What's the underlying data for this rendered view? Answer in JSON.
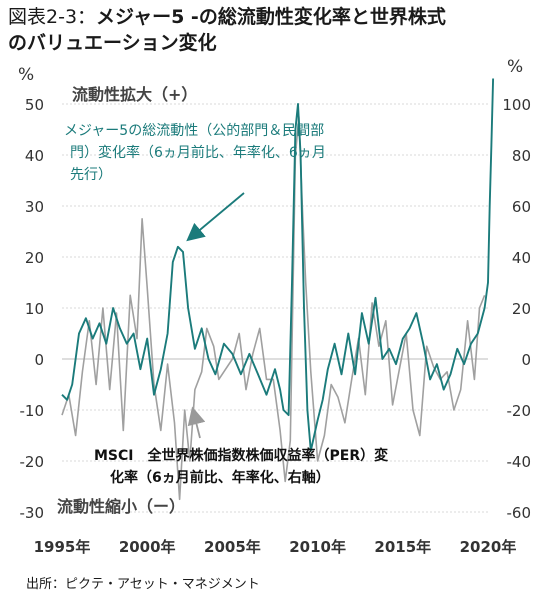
{
  "title": {
    "line1_lead": "図表2-3：",
    "line1_rest": "メジャー5 -の総流動性変化率と世界株式",
    "line2": "のバリュエーション変化"
  },
  "source": "出所：ピクテ・アセット・マネジメント",
  "chart_data": {
    "type": "line",
    "left_axis": {
      "unit": "%",
      "ylim": [
        -30,
        50
      ],
      "ticks": [
        -30,
        -20,
        -10,
        0,
        10,
        20,
        30,
        40,
        50
      ]
    },
    "right_axis": {
      "unit": "%",
      "ylim": [
        -60,
        100
      ],
      "ticks": [
        -60,
        -40,
        -20,
        0,
        20,
        40,
        60,
        80,
        100
      ]
    },
    "x_axis": {
      "range": [
        1995,
        2020
      ],
      "tick_labels": [
        "1995年",
        "2000年",
        "2005年",
        "2010年",
        "2015年",
        "2020年"
      ],
      "tick_values": [
        1995,
        2000,
        2005,
        2010,
        2015,
        2020
      ]
    },
    "top_label": "流動性拡大（+）",
    "bottom_label": "流動性縮小（ー）",
    "annotations": {
      "teal": [
        "メジャー5の総流動性（公的部門＆民間部",
        "門）変化率（6ヵ月前比、年率化、6ヵ月",
        "先行）"
      ],
      "gray": [
        "MSCI　全世界株価指数株価収益率（PER）変",
        "化率（6ヵ月前比、年率化、右軸）"
      ]
    },
    "series": [
      {
        "name": "メジャー5の総流動性（公的部門＆民間部門）変化率（6ヵ月前比、年率化、6ヵ月先行）",
        "axis": "left",
        "color": "#1b7b7b",
        "points": [
          [
            1995.0,
            -7
          ],
          [
            1995.3,
            -8
          ],
          [
            1995.6,
            -5
          ],
          [
            1996.0,
            5
          ],
          [
            1996.4,
            8
          ],
          [
            1996.8,
            4
          ],
          [
            1997.2,
            7
          ],
          [
            1997.6,
            3
          ],
          [
            1998.0,
            10
          ],
          [
            1998.4,
            6
          ],
          [
            1998.8,
            3
          ],
          [
            1999.2,
            5
          ],
          [
            1999.6,
            -2
          ],
          [
            2000.0,
            4
          ],
          [
            2000.4,
            -7
          ],
          [
            2000.8,
            -2
          ],
          [
            2001.2,
            5
          ],
          [
            2001.5,
            19
          ],
          [
            2001.8,
            22
          ],
          [
            2002.1,
            21
          ],
          [
            2002.4,
            10
          ],
          [
            2002.8,
            2
          ],
          [
            2003.2,
            6
          ],
          [
            2003.6,
            0
          ],
          [
            2004.0,
            -3
          ],
          [
            2004.5,
            3
          ],
          [
            2005.0,
            1
          ],
          [
            2005.5,
            -3
          ],
          [
            2006.0,
            1
          ],
          [
            2006.5,
            -3
          ],
          [
            2007.0,
            -7
          ],
          [
            2007.5,
            -2
          ],
          [
            2007.8,
            -6
          ],
          [
            2008.0,
            -10
          ],
          [
            2008.3,
            -11
          ],
          [
            2008.5,
            15
          ],
          [
            2008.7,
            45
          ],
          [
            2008.85,
            50
          ],
          [
            2009.0,
            40
          ],
          [
            2009.2,
            10
          ],
          [
            2009.4,
            -10
          ],
          [
            2009.6,
            -18
          ],
          [
            2009.8,
            -15
          ],
          [
            2010.0,
            -12
          ],
          [
            2010.3,
            -8
          ],
          [
            2010.6,
            -2
          ],
          [
            2011.0,
            3
          ],
          [
            2011.4,
            -3
          ],
          [
            2011.8,
            5
          ],
          [
            2012.2,
            -3
          ],
          [
            2012.6,
            9
          ],
          [
            2013.0,
            3
          ],
          [
            2013.4,
            12
          ],
          [
            2013.8,
            0
          ],
          [
            2014.2,
            2
          ],
          [
            2014.6,
            -1
          ],
          [
            2015.0,
            4
          ],
          [
            2015.4,
            6
          ],
          [
            2015.8,
            9
          ],
          [
            2016.2,
            3
          ],
          [
            2016.6,
            -4
          ],
          [
            2017.0,
            -1
          ],
          [
            2017.4,
            -6
          ],
          [
            2017.8,
            -3
          ],
          [
            2018.2,
            2
          ],
          [
            2018.6,
            -1
          ],
          [
            2019.0,
            3
          ],
          [
            2019.4,
            5
          ],
          [
            2019.8,
            10
          ],
          [
            2020.0,
            15
          ],
          [
            2020.1,
            30
          ],
          [
            2020.2,
            42
          ],
          [
            2020.3,
            55
          ]
        ]
      },
      {
        "name": "MSCI　全世界株価指数株価収益率（PER）変化率（6ヵ月前比、年率化、右軸）",
        "axis": "right",
        "color": "#a0a0a0",
        "points": [
          [
            1995.0,
            -22
          ],
          [
            1995.4,
            -14
          ],
          [
            1995.8,
            -30
          ],
          [
            1996.2,
            -5
          ],
          [
            1996.6,
            15
          ],
          [
            1997.0,
            -10
          ],
          [
            1997.4,
            20
          ],
          [
            1997.8,
            -12
          ],
          [
            1998.2,
            18
          ],
          [
            1998.6,
            -28
          ],
          [
            1999.0,
            25
          ],
          [
            1999.4,
            8
          ],
          [
            1999.7,
            55
          ],
          [
            2000.0,
            28
          ],
          [
            2000.4,
            -10
          ],
          [
            2000.8,
            -28
          ],
          [
            2001.2,
            -2
          ],
          [
            2001.6,
            -25
          ],
          [
            2001.9,
            -55
          ],
          [
            2002.2,
            -20
          ],
          [
            2002.5,
            -40
          ],
          [
            2002.8,
            -12
          ],
          [
            2003.2,
            -5
          ],
          [
            2003.5,
            12
          ],
          [
            2003.9,
            5
          ],
          [
            2004.2,
            -8
          ],
          [
            2004.6,
            -4
          ],
          [
            2005.0,
            0
          ],
          [
            2005.4,
            10
          ],
          [
            2005.8,
            -12
          ],
          [
            2006.2,
            2
          ],
          [
            2006.6,
            12
          ],
          [
            2007.0,
            -8
          ],
          [
            2007.4,
            -8
          ],
          [
            2007.8,
            -28
          ],
          [
            2008.1,
            -48
          ],
          [
            2008.4,
            -32
          ],
          [
            2008.7,
            80
          ],
          [
            2008.9,
            95
          ],
          [
            2009.1,
            60
          ],
          [
            2009.3,
            30
          ],
          [
            2009.6,
            -5
          ],
          [
            2010.0,
            -40
          ],
          [
            2010.4,
            -30
          ],
          [
            2010.8,
            -10
          ],
          [
            2011.2,
            -15
          ],
          [
            2011.6,
            -25
          ],
          [
            2012.0,
            -8
          ],
          [
            2012.4,
            8
          ],
          [
            2012.8,
            -14
          ],
          [
            2013.2,
            22
          ],
          [
            2013.6,
            5
          ],
          [
            2014.0,
            15
          ],
          [
            2014.4,
            -18
          ],
          [
            2014.8,
            -4
          ],
          [
            2015.2,
            10
          ],
          [
            2015.6,
            -20
          ],
          [
            2016.0,
            -30
          ],
          [
            2016.4,
            5
          ],
          [
            2016.8,
            -3
          ],
          [
            2017.2,
            -8
          ],
          [
            2017.6,
            -5
          ],
          [
            2018.0,
            -20
          ],
          [
            2018.4,
            -12
          ],
          [
            2018.8,
            15
          ],
          [
            2019.2,
            -8
          ],
          [
            2019.5,
            20
          ],
          [
            2019.8,
            25
          ]
        ]
      }
    ]
  }
}
